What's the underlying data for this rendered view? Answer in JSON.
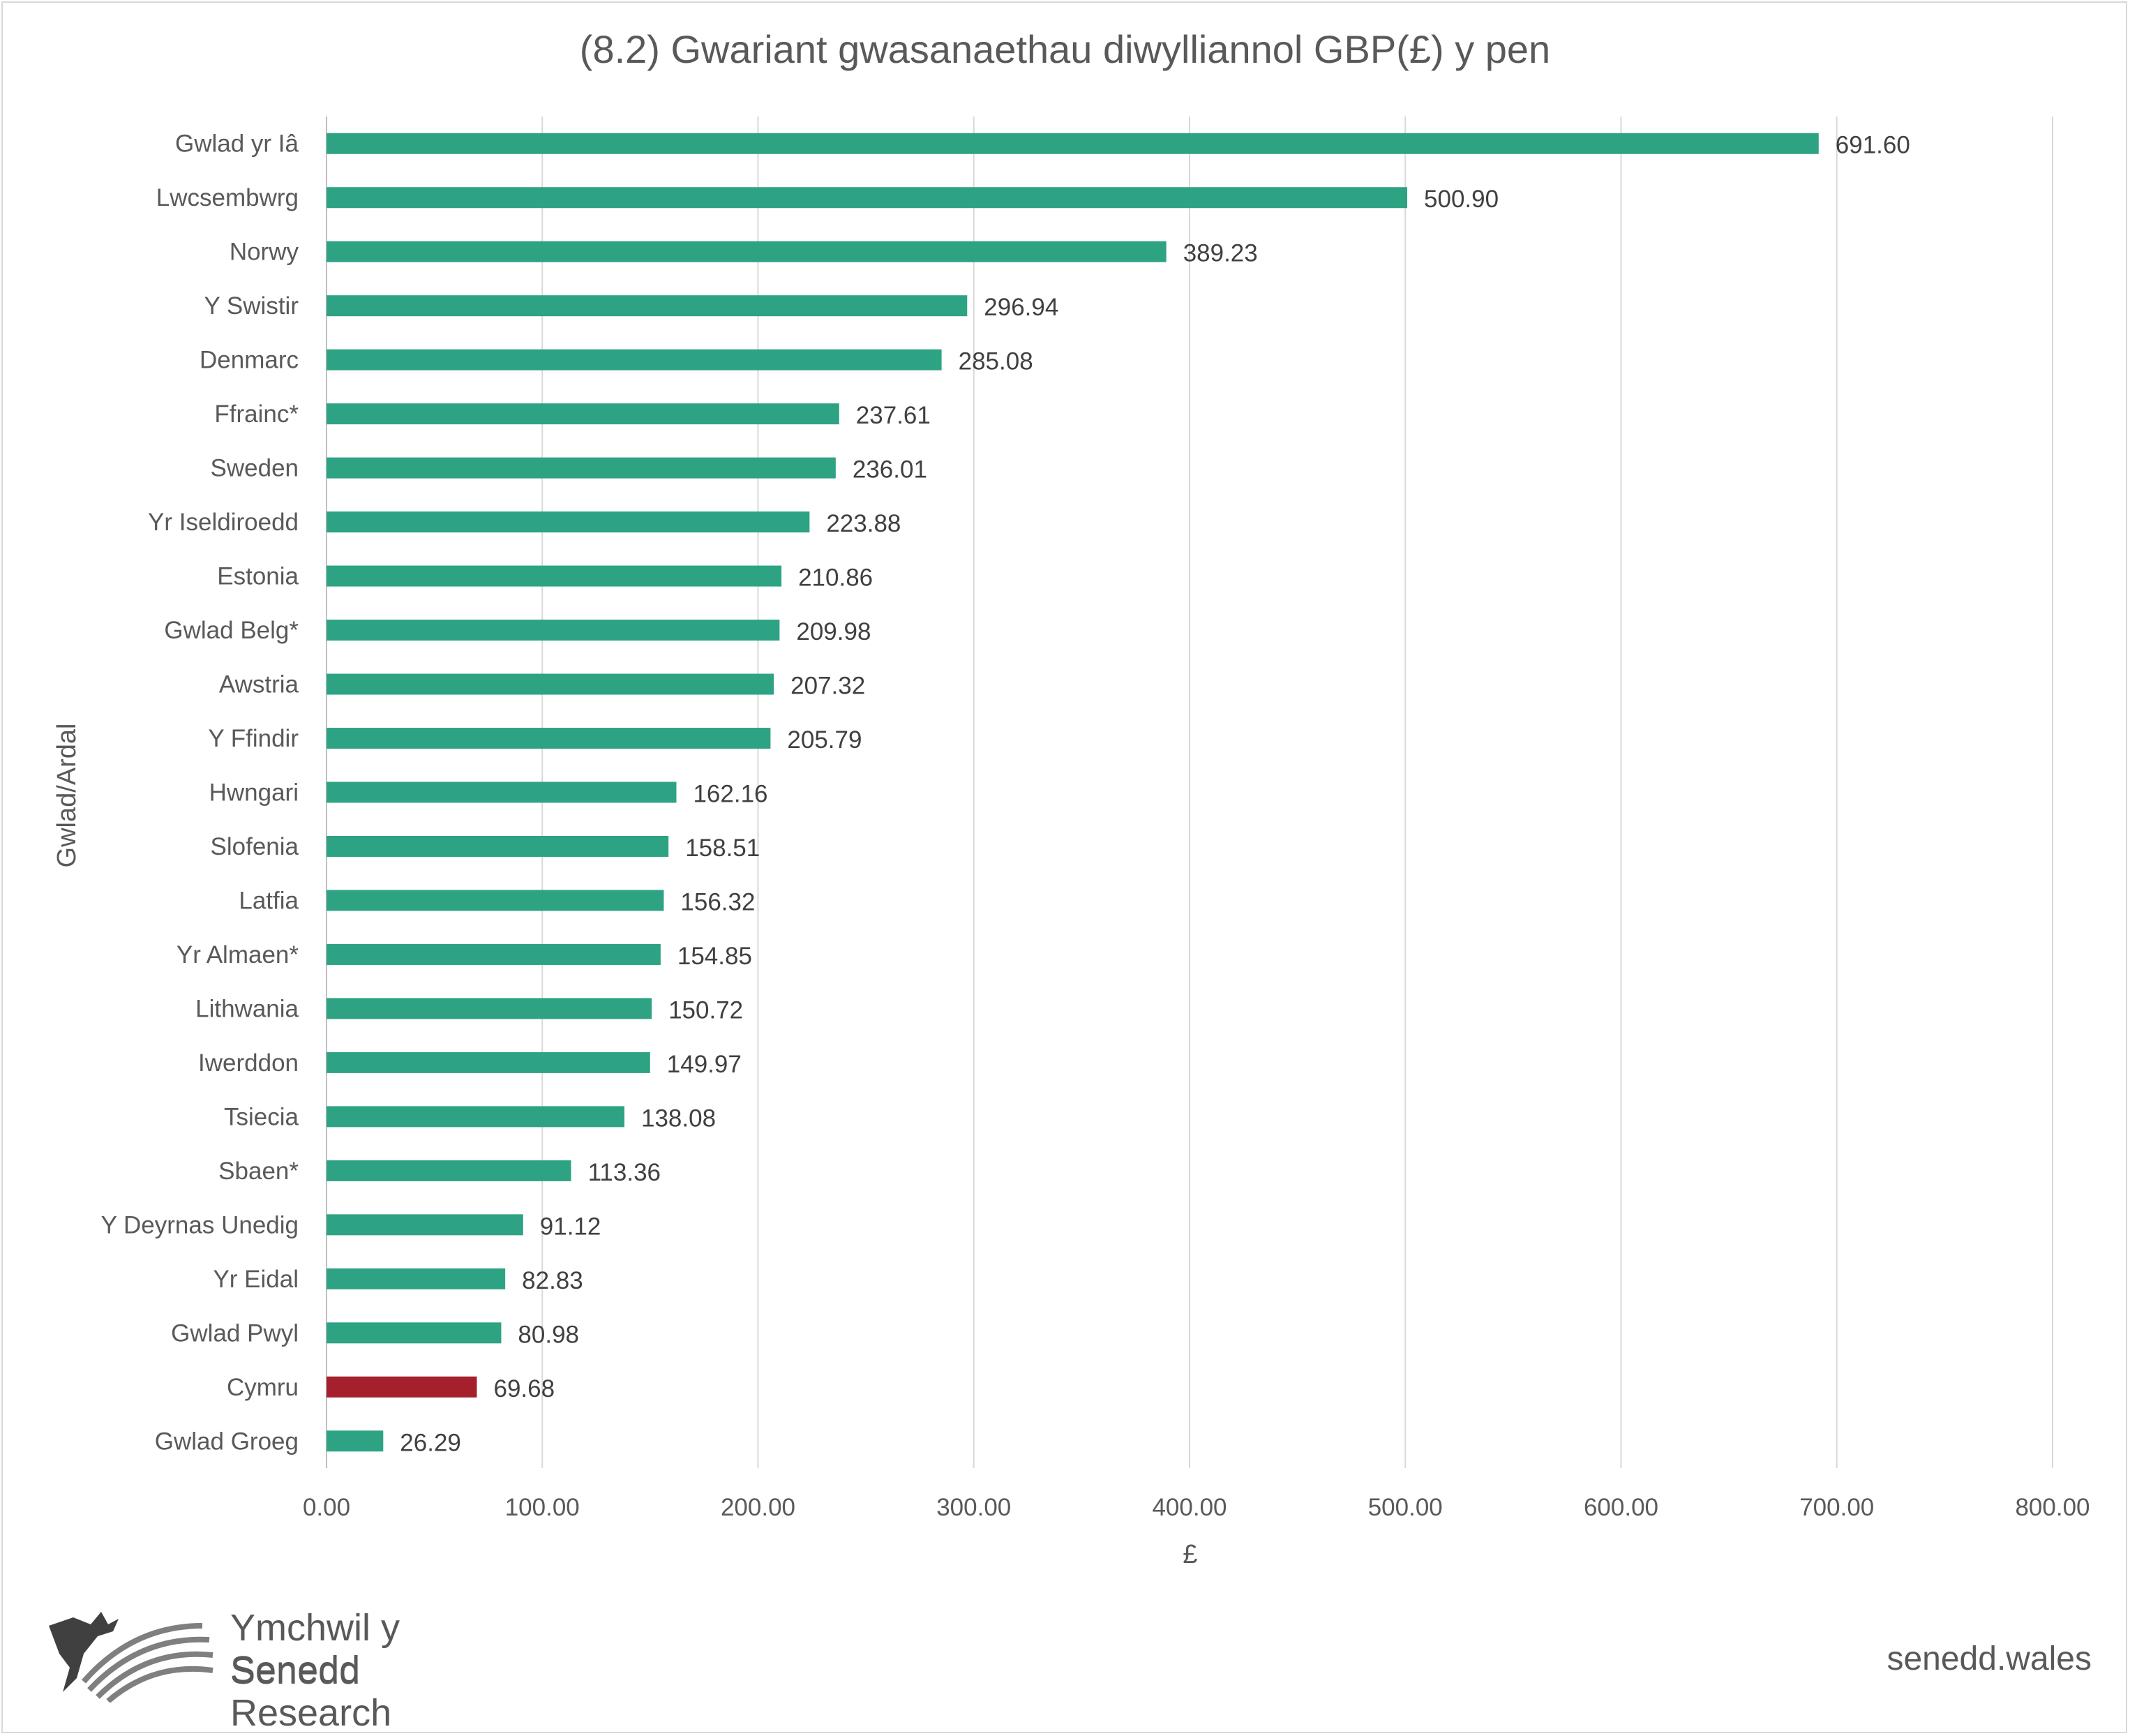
{
  "chart_data": {
    "type": "bar",
    "orientation": "horizontal",
    "title": "(8.2) Gwariant gwasanaethau diwylliannol GBP(£) y pen",
    "xlabel": "£",
    "ylabel": "Gwlad/Ardal",
    "xlim": [
      0,
      800
    ],
    "xticks": [
      "0.00",
      "100.00",
      "200.00",
      "300.00",
      "400.00",
      "500.00",
      "600.00",
      "700.00",
      "800.00"
    ],
    "grid": true,
    "legend": "none",
    "categories": [
      "Gwlad yr Iâ",
      "Lwcsembwrg",
      "Norwy",
      "Y Swistir",
      "Denmarc",
      "Ffrainc*",
      "Sweden",
      "Yr Iseldiroedd",
      "Estonia",
      "Gwlad Belg*",
      "Awstria",
      "Y Ffindir",
      "Hwngari",
      "Slofenia",
      "Latfia",
      "Yr Almaen*",
      "Lithwania",
      "Iwerddon",
      "Tsiecia",
      "Sbaen*",
      "Y Deyrnas Unedig",
      "Yr Eidal",
      "Gwlad Pwyl",
      "Cymru",
      "Gwlad Groeg"
    ],
    "values": [
      691.6,
      500.9,
      389.23,
      296.94,
      285.08,
      237.61,
      236.01,
      223.88,
      210.86,
      209.98,
      207.32,
      205.79,
      162.16,
      158.51,
      156.32,
      154.85,
      150.72,
      149.97,
      138.08,
      113.36,
      91.12,
      82.83,
      80.98,
      69.68,
      26.29
    ],
    "value_labels": [
      "691.60",
      "500.90",
      "389.23",
      "296.94",
      "285.08",
      "237.61",
      "236.01",
      "223.88",
      "210.86",
      "209.98",
      "207.32",
      "205.79",
      "162.16",
      "158.51",
      "156.32",
      "154.85",
      "150.72",
      "149.97",
      "138.08",
      "113.36",
      "91.12",
      "82.83",
      "80.98",
      "69.68",
      "26.29"
    ],
    "colors": {
      "default": "#2da383",
      "highlight": "#a3202c",
      "gridline": "#d9d9d9",
      "text": "#595959"
    },
    "highlight_category": "Cymru"
  },
  "footer": {
    "logo_line1": "Ymchwil y Senedd",
    "logo_line2": "Senedd Research",
    "logo_icon": "dragon-logo-icon",
    "website": "senedd.wales"
  }
}
